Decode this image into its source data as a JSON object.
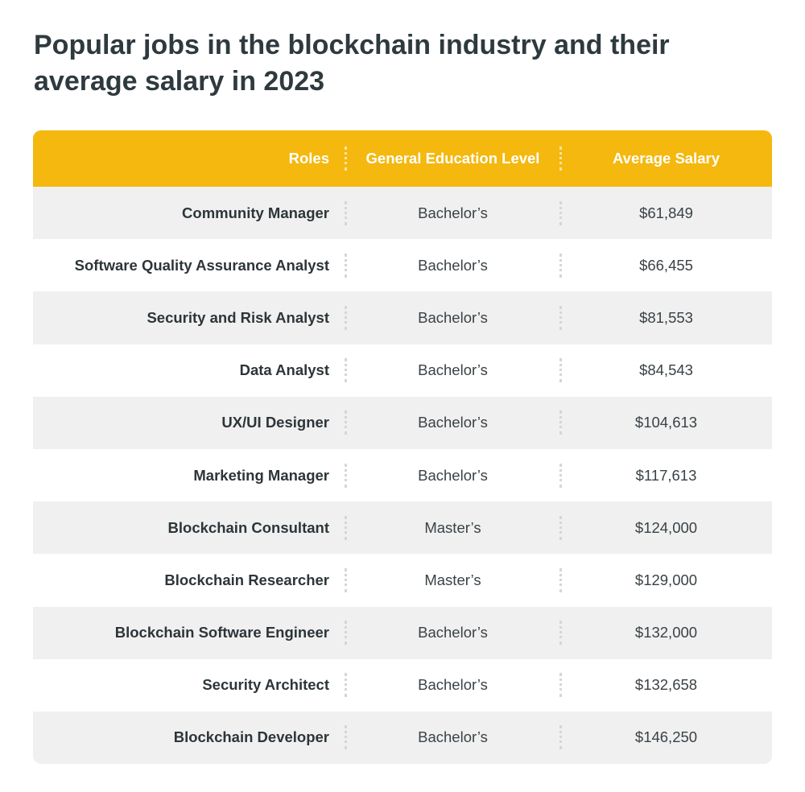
{
  "title": "Popular jobs in the blockchain industry and their average salary in 2023",
  "table": {
    "headers": {
      "role": "Roles",
      "education": "General Education Level",
      "salary": "Average Salary"
    },
    "rows": [
      {
        "role": "Community Manager",
        "education": "Bachelor’s",
        "salary": "$61,849"
      },
      {
        "role": "Software Quality Assurance Analyst",
        "education": "Bachelor’s",
        "salary": "$66,455"
      },
      {
        "role": "Security and Risk Analyst",
        "education": "Bachelor’s",
        "salary": "$81,553"
      },
      {
        "role": "Data Analyst",
        "education": "Bachelor’s",
        "salary": "$84,543"
      },
      {
        "role": "UX/UI Designer",
        "education": "Bachelor’s",
        "salary": "$104,613"
      },
      {
        "role": "Marketing Manager",
        "education": "Bachelor’s",
        "salary": "$117,613"
      },
      {
        "role": "Blockchain Consultant",
        "education": "Master’s",
        "salary": "$124,000"
      },
      {
        "role": "Blockchain Researcher",
        "education": "Master’s",
        "salary": "$129,000"
      },
      {
        "role": "Blockchain Software Engineer",
        "education": "Bachelor’s",
        "salary": "$132,000"
      },
      {
        "role": "Security Architect",
        "education": "Bachelor’s",
        "salary": "$132,658"
      },
      {
        "role": "Blockchain Developer",
        "education": "Bachelor’s",
        "salary": "$146,250"
      }
    ]
  },
  "colors": {
    "header_bg": "#f4b80f",
    "row_shade": "#f0f0f0",
    "title_text": "#2f3a3f"
  }
}
